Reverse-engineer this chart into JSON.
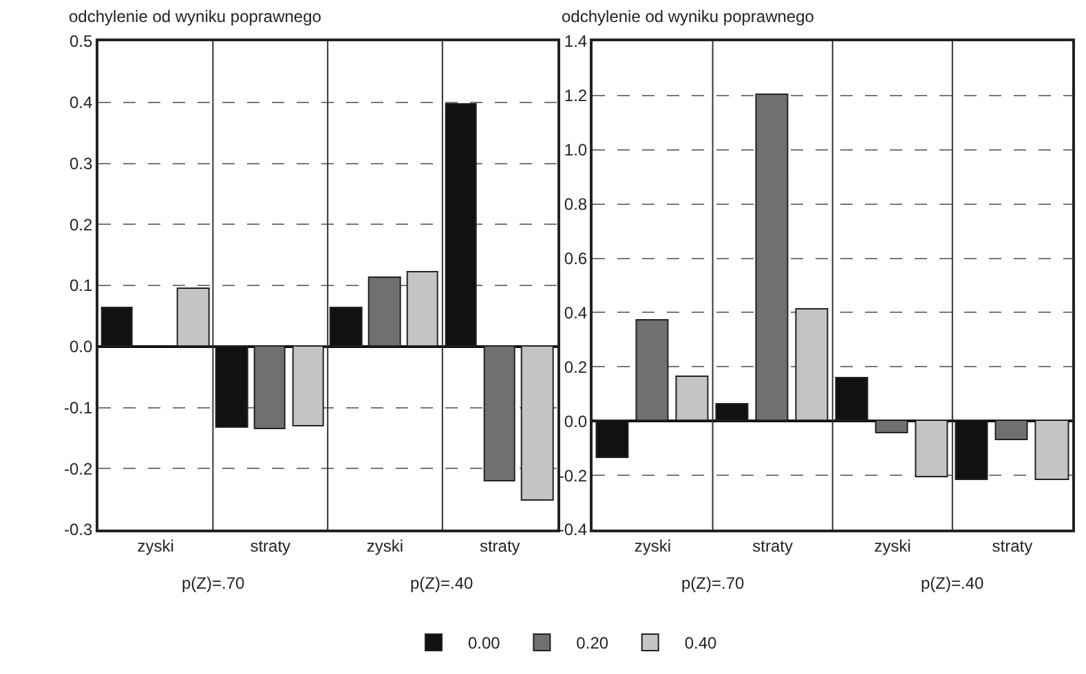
{
  "chart_data": [
    {
      "type": "bar",
      "ylabel": "odchylenie od wyniku poprawnego",
      "categories": [
        "zyski",
        "straty",
        "zyski",
        "straty"
      ],
      "series": [
        {
          "name": "0.00",
          "color": "#111111",
          "values": [
            0.063,
            -0.133,
            0.063,
            0.397
          ]
        },
        {
          "name": "0.20",
          "color": "#707070",
          "values": [
            null,
            -0.136,
            0.113,
            -0.221
          ]
        },
        {
          "name": "0.40",
          "color": "#c4c4c4",
          "values": [
            0.094,
            -0.131,
            0.122,
            -0.252
          ]
        }
      ],
      "ylim": [
        -0.3,
        0.5
      ],
      "yticks": [
        {
          "value": -0.3,
          "label": "-0.3"
        },
        {
          "value": -0.2,
          "label": "-0.2"
        },
        {
          "value": -0.1,
          "label": "-0.1"
        },
        {
          "value": 0,
          "label": "0.0"
        },
        {
          "value": 0.1,
          "label": "0.1"
        },
        {
          "value": 0.2,
          "label": "0.2"
        },
        {
          "value": 0.3,
          "label": "0.3"
        },
        {
          "value": 0.4,
          "label": "0.4"
        },
        {
          "value": 0.5,
          "label": "0.5"
        }
      ],
      "grid": true,
      "legend": "bottom",
      "annotations": [
        "p(Z)=.70",
        "p(Z)=.40"
      ]
    },
    {
      "type": "bar",
      "ylabel": "odchylenie od wyniku poprawnego",
      "categories": [
        "zyski",
        "straty",
        "zyski",
        "straty"
      ],
      "series": [
        {
          "name": "0.00",
          "color": "#111111",
          "values": [
            -0.137,
            0.06,
            0.157,
            -0.219
          ]
        },
        {
          "name": "0.20",
          "color": "#707070",
          "values": [
            0.369,
            1.2,
            -0.046,
            -0.072
          ]
        },
        {
          "name": "0.40",
          "color": "#c4c4c4",
          "values": [
            0.162,
            0.41,
            -0.209,
            -0.219
          ]
        }
      ],
      "ylim": [
        -0.4,
        1.4
      ],
      "yticks": [
        {
          "value": -0.4,
          "label": "-0.4"
        },
        {
          "value": -0.2,
          "label": "-0.2"
        },
        {
          "value": 0,
          "label": "0.0"
        },
        {
          "value": 0.2,
          "label": "0.2"
        },
        {
          "value": 0.4,
          "label": "0.4"
        },
        {
          "value": 0.6,
          "label": "0.6"
        },
        {
          "value": 0.8,
          "label": "0.8"
        },
        {
          "value": 1.0,
          "label": "1.0"
        },
        {
          "value": 1.2,
          "label": "1.2"
        },
        {
          "value": 1.4,
          "label": "1.4"
        }
      ],
      "grid": true,
      "legend": "bottom",
      "annotations": [
        "p(Z)=.70",
        "p(Z)=.40"
      ]
    }
  ]
}
